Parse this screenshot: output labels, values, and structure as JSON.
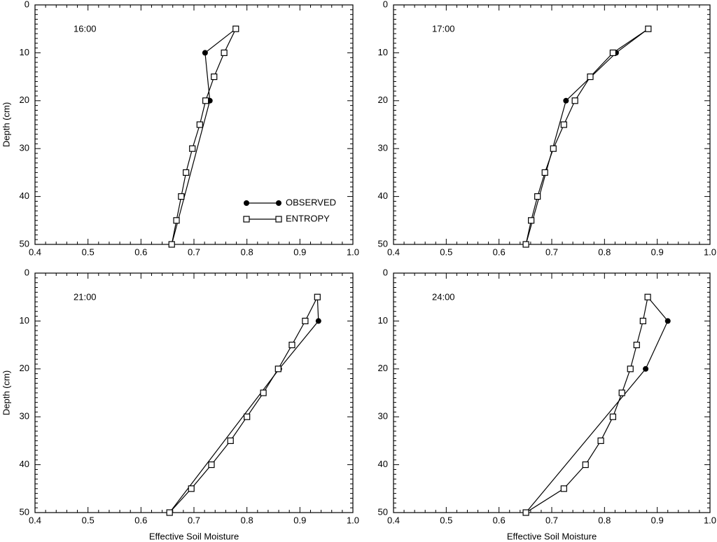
{
  "chart_data": [
    {
      "type": "line",
      "annotation": "16:00",
      "ylabel": "Depth (cm)",
      "legend": "lower right",
      "xlim": [
        0.4,
        1.0
      ],
      "xticks": [
        0.4,
        0.5,
        0.6,
        0.7,
        0.8,
        0.9,
        {
          "value": 1.0,
          "label": "1.0"
        }
      ],
      "ylim": [
        0,
        50
      ],
      "yticks": [
        0,
        10,
        20,
        30,
        40,
        50
      ],
      "y_inverted": true,
      "series": [
        {
          "name": "OBSERVED",
          "color": "#000000",
          "marker": "circle",
          "x": [
            0.779,
            0.721,
            0.73,
            0.658
          ],
          "y": [
            5,
            10,
            20,
            50
          ]
        },
        {
          "name": "ENTROPY",
          "color": "#000000",
          "marker": "square",
          "x": [
            0.779,
            0.757,
            0.738,
            0.722,
            0.711,
            0.697,
            0.685,
            0.676,
            0.667,
            0.658
          ],
          "y": [
            5,
            10,
            15,
            20,
            25,
            30,
            35,
            40,
            45,
            50
          ]
        }
      ]
    },
    {
      "type": "line",
      "annotation": "17:00",
      "xlim": [
        0.4,
        1.0
      ],
      "xticks": [
        0.4,
        0.5,
        0.6,
        0.7,
        0.8,
        0.9,
        {
          "value": 1.0,
          "label": "1.0"
        }
      ],
      "ylim": [
        0,
        50
      ],
      "yticks": [
        0,
        10,
        20,
        30,
        40,
        50
      ],
      "y_inverted": true,
      "series": [
        {
          "color": "#000000",
          "marker": "circle",
          "x": [
            0.883,
            0.822,
            0.727,
            0.651
          ],
          "y": [
            5,
            10,
            20,
            50
          ]
        },
        {
          "color": "#000000",
          "marker": "square",
          "x": [
            0.883,
            0.816,
            0.773,
            0.744,
            0.723,
            0.703,
            0.687,
            0.673,
            0.661,
            0.651
          ],
          "y": [
            5,
            10,
            15,
            20,
            25,
            30,
            35,
            40,
            45,
            50
          ]
        }
      ]
    },
    {
      "type": "line",
      "annotation": "21:00",
      "ylabel": "Depth (cm)",
      "xlabel": "Effective Soil Moisture",
      "xlim": [
        0.4,
        1.0
      ],
      "xticks": [
        0.4,
        0.5,
        0.6,
        0.7,
        0.8,
        0.9,
        {
          "value": 1.0,
          "label": "1.0"
        }
      ],
      "ylim": [
        0,
        50
      ],
      "yticks": [
        0,
        10,
        20,
        30,
        40,
        50
      ],
      "y_inverted": true,
      "series": [
        {
          "color": "#000000",
          "marker": "circle",
          "x": [
            0.933,
            0.935,
            0.861,
            0.654
          ],
          "y": [
            5,
            10,
            20,
            50
          ]
        },
        {
          "color": "#000000",
          "marker": "square",
          "x": [
            0.933,
            0.91,
            0.885,
            0.859,
            0.831,
            0.8,
            0.769,
            0.733,
            0.695,
            0.654
          ],
          "y": [
            5,
            10,
            15,
            20,
            25,
            30,
            35,
            40,
            45,
            50
          ]
        }
      ]
    },
    {
      "type": "line",
      "annotation": "24:00",
      "xlabel": "Effective Soil Moisture",
      "xlim": [
        0.4,
        1.0
      ],
      "xticks": [
        0.4,
        0.5,
        0.6,
        0.7,
        0.8,
        0.9,
        {
          "value": 1.0,
          "label": "1.0"
        }
      ],
      "ylim": [
        0,
        50
      ],
      "yticks": [
        0,
        10,
        20,
        30,
        40,
        50
      ],
      "y_inverted": true,
      "series": [
        {
          "color": "#000000",
          "marker": "circle",
          "x": [
            0.882,
            0.92,
            0.878,
            0.651
          ],
          "y": [
            5,
            10,
            20,
            50
          ]
        },
        {
          "color": "#000000",
          "marker": "square",
          "x": [
            0.882,
            0.873,
            0.861,
            0.849,
            0.833,
            0.816,
            0.793,
            0.764,
            0.723,
            0.651
          ],
          "y": [
            5,
            10,
            15,
            20,
            25,
            30,
            35,
            40,
            45,
            50
          ]
        }
      ]
    }
  ]
}
